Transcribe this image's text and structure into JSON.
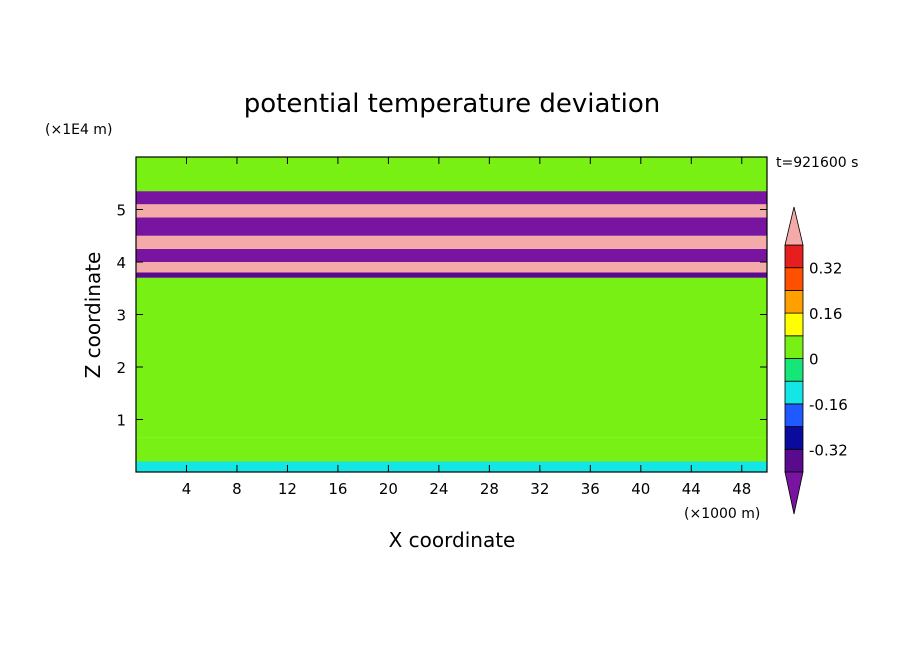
{
  "chart_data": {
    "type": "heatmap",
    "title": "potential temperature deviation",
    "xlabel": "X coordinate",
    "ylabel": "Z coordinate",
    "x_unit": "(×1000 m)",
    "y_unit": "(×1E4 m)",
    "time_label": "t=921600 s",
    "xlim": [
      0,
      50
    ],
    "ylim": [
      0,
      6
    ],
    "x_ticks": [
      4,
      8,
      12,
      16,
      20,
      24,
      28,
      32,
      36,
      40,
      44,
      48
    ],
    "y_ticks": [
      1,
      2,
      3,
      4,
      5
    ],
    "colorbar": {
      "levels": [
        -0.4,
        -0.32,
        -0.24,
        -0.16,
        -0.08,
        0,
        0.08,
        0.16,
        0.24,
        0.32,
        0.4
      ],
      "colors": [
        "#5a0a8c",
        "#0a0a9c",
        "#1e5aff",
        "#14e6e6",
        "#14e678",
        "#78f014",
        "#ffff00",
        "#ffa000",
        "#ff5000",
        "#e61e1e"
      ],
      "over_color": "#f5aaaa",
      "under_color": "#7814a0",
      "tick_labels": [
        "0.32",
        "0.16",
        "0",
        "-0.16",
        "-0.32"
      ],
      "tick_values": [
        0.32,
        0.16,
        0,
        -0.16,
        -0.32
      ]
    },
    "bands": [
      {
        "z0": 0.0,
        "z1": 0.2,
        "value": -0.12
      },
      {
        "z0": 0.2,
        "z1": 0.65,
        "value": 0.04
      },
      {
        "z0": 0.65,
        "z1": 1.4,
        "value": 0.02
      },
      {
        "z0": 1.4,
        "z1": 2.4,
        "value": 0.03
      },
      {
        "z0": 2.4,
        "z1": 3.7,
        "value": 0.05
      },
      {
        "z0": 3.7,
        "z1": 3.8,
        "value": -0.36
      },
      {
        "z0": 3.8,
        "z1": 4.0,
        "value": 0.45
      },
      {
        "z0": 4.0,
        "z1": 4.25,
        "value": -0.45
      },
      {
        "z0": 4.25,
        "z1": 4.5,
        "value": 0.45
      },
      {
        "z0": 4.5,
        "z1": 4.85,
        "value": -0.45
      },
      {
        "z0": 4.85,
        "z1": 5.1,
        "value": 0.45
      },
      {
        "z0": 5.1,
        "z1": 5.35,
        "value": -0.45
      },
      {
        "z0": 5.35,
        "z1": 6.0,
        "value": 0.05
      }
    ]
  }
}
